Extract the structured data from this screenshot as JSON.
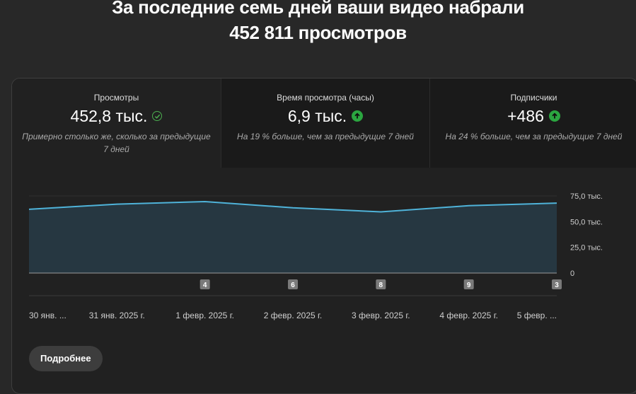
{
  "headline": {
    "line1": "За последние семь дней ваши видео набрали",
    "line2": "452 811 просмотров"
  },
  "metrics": [
    {
      "title": "Просмотры",
      "value": "452,8 тыс.",
      "icon": "check-circle-icon",
      "note": "Примерно столько же, сколько за предыдущие 7 дней"
    },
    {
      "title": "Время просмотра (часы)",
      "value": "6,9 тыс.",
      "icon": "arrow-up-circle-icon",
      "note": "На 19 % больше, чем за предыдущие 7 дней"
    },
    {
      "title": "Подписчики",
      "value": "+486",
      "icon": "arrow-up-circle-icon",
      "note": "На 24 % больше, чем за предыдущие 7 дней"
    }
  ],
  "chart_data": {
    "type": "area",
    "series": [
      {
        "values": [
          62000,
          67000,
          69500,
          63500,
          59500,
          65500,
          68000
        ]
      }
    ],
    "ylim": [
      0,
      75000
    ],
    "yticks": [
      "75,0 тыс.",
      "50,0 тыс.",
      "25,0 тыс.",
      "0"
    ],
    "x_labels": [
      "30 янв. ...",
      "31 янв. 2025 г.",
      "1 февр. 2025 г.",
      "2 февр. 2025 г.",
      "3 февр. 2025 г.",
      "4 февр. 2025 г.",
      "5 февр. ..."
    ],
    "markers": [
      "4",
      "6",
      "8",
      "9",
      "3"
    ],
    "grid": true,
    "colors": {
      "line": "#4fb3d9",
      "fill": "#263741"
    }
  },
  "button": {
    "label": "Подробнее"
  },
  "colors": {
    "background": "#282828",
    "card": "#212121",
    "check": "#4caf50",
    "up": "#2ba640"
  }
}
